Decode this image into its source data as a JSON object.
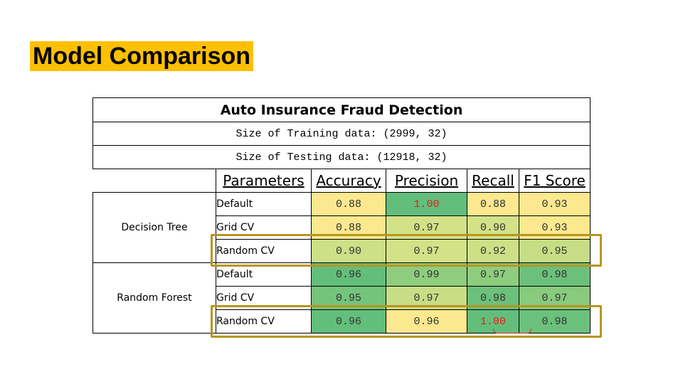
{
  "slide": {
    "title": "Model Comparison"
  },
  "table": {
    "title": "Auto Insurance Fraud Detection",
    "training_size": "Size of Training data: (2999, 32)",
    "testing_size": "Size of Testing data: (12918, 32)",
    "headers": [
      "Parameters",
      "Accuracy",
      "Precision",
      "Recall",
      "F1 Score"
    ],
    "models": [
      {
        "name": "Decision Tree",
        "rows": [
          {
            "param": "Default",
            "values": [
              "0.88",
              "1.00",
              "0.88",
              "0.93"
            ],
            "colors": [
              "#fbe88f",
              "#63be7b",
              "#fbe88f",
              "#fbe88f"
            ],
            "red": [
              false,
              true,
              false,
              false
            ]
          },
          {
            "param": "Grid CV",
            "values": [
              "0.88",
              "0.97",
              "0.90",
              "0.93"
            ],
            "colors": [
              "#fbe88f",
              "#d3e287",
              "#d3e287",
              "#fbe88f"
            ],
            "red": [
              false,
              false,
              false,
              false
            ]
          },
          {
            "param": "Random CV",
            "values": [
              "0.90",
              "0.97",
              "0.92",
              "0.95"
            ],
            "colors": [
              "#cde087",
              "#d3e287",
              "#cde087",
              "#c6dd86"
            ],
            "red": [
              false,
              false,
              false,
              false
            ]
          }
        ]
      },
      {
        "name": "Random Forest",
        "rows": [
          {
            "param": "Default",
            "values": [
              "0.96",
              "0.99",
              "0.97",
              "0.98"
            ],
            "colors": [
              "#63be7b",
              "#8fcd7e",
              "#8fcd7e",
              "#6bc17b"
            ],
            "red": [
              false,
              false,
              false,
              false
            ]
          },
          {
            "param": "Grid CV",
            "values": [
              "0.95",
              "0.97",
              "0.98",
              "0.97"
            ],
            "colors": [
              "#75c47c",
              "#c8de86",
              "#6bc17b",
              "#88ca7e"
            ],
            "red": [
              false,
              false,
              false,
              false
            ]
          },
          {
            "param": "Random CV",
            "values": [
              "0.96",
              "0.96",
              "1.00",
              "0.98"
            ],
            "colors": [
              "#63be7b",
              "#fbe88f",
              "#63be7b",
              "#6bc17b"
            ],
            "red": [
              false,
              false,
              true,
              false
            ]
          }
        ]
      }
    ]
  },
  "highlight_color": "#b8951f"
}
